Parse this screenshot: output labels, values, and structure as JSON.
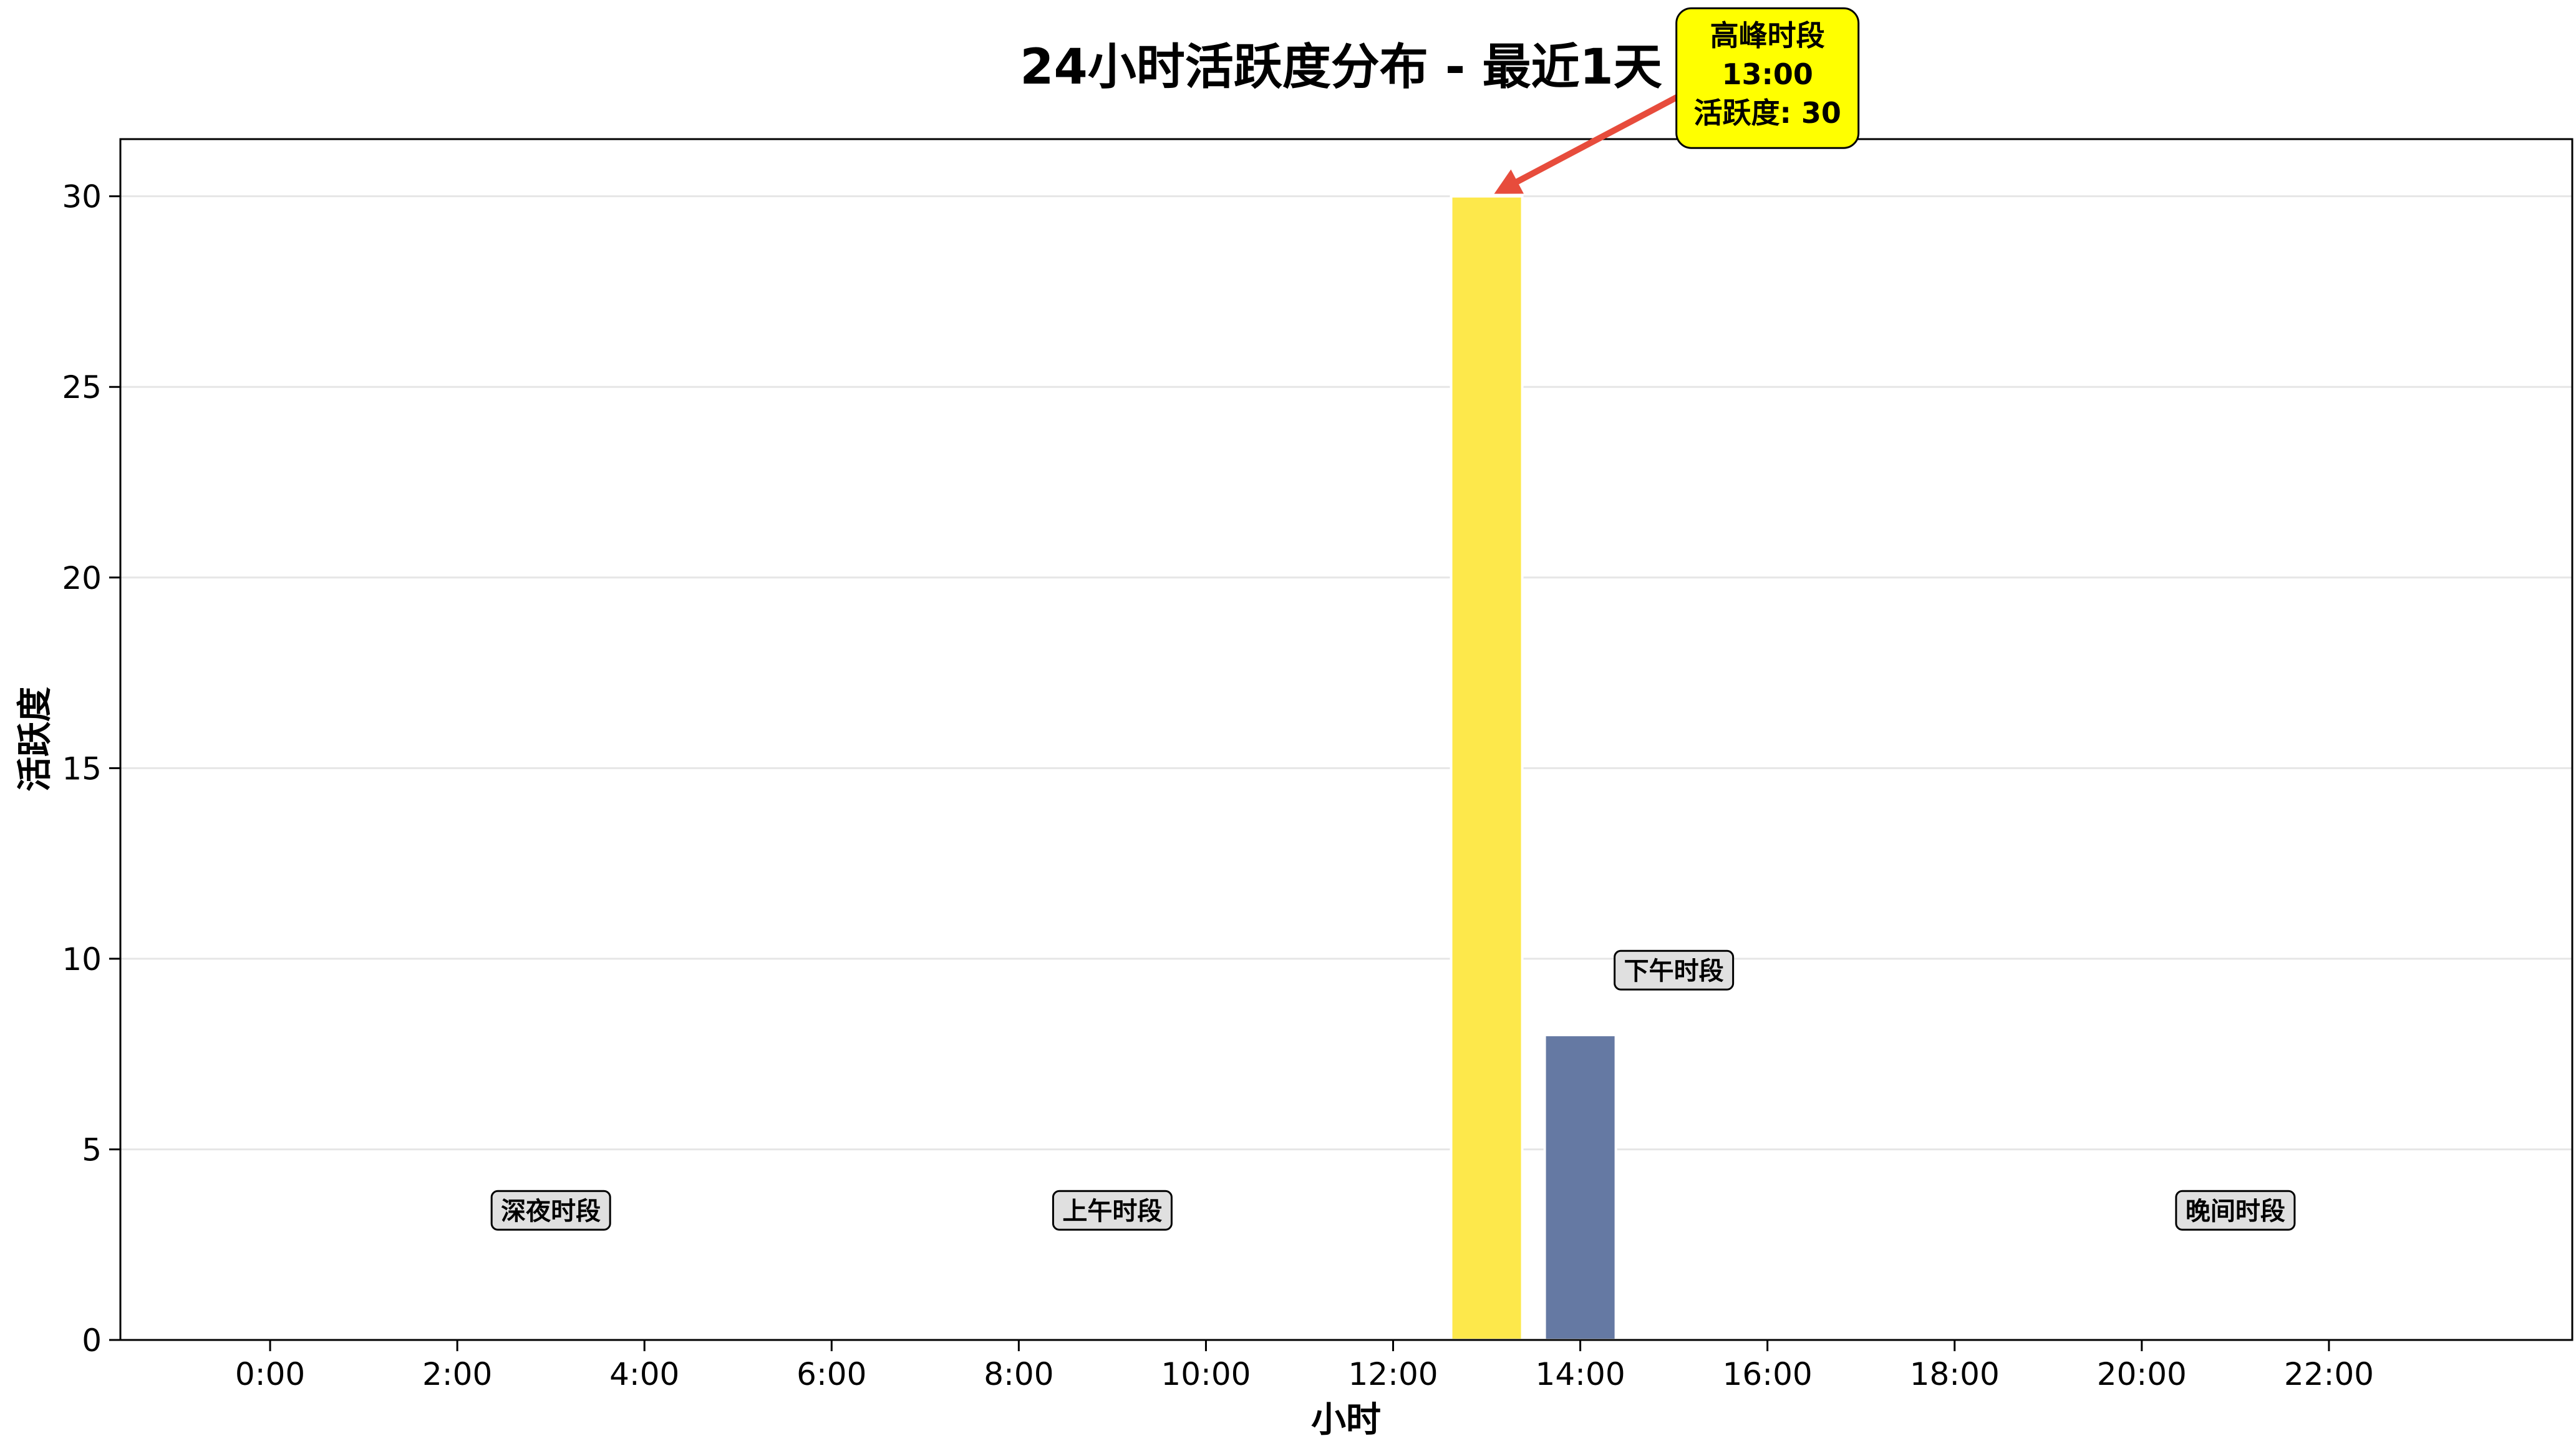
{
  "chart_data": {
    "type": "bar",
    "title": "24小时活跃度分布 - 最近1天",
    "xlabel": "小时",
    "ylabel": "活跃度",
    "x": [
      0,
      1,
      2,
      3,
      4,
      5,
      6,
      7,
      8,
      9,
      10,
      11,
      12,
      13,
      14,
      15,
      16,
      17,
      18,
      19,
      20,
      21,
      22,
      23
    ],
    "values": [
      0,
      0,
      0,
      0,
      0,
      0,
      0,
      0,
      0,
      0,
      0,
      0,
      0,
      30,
      8,
      0,
      0,
      0,
      0,
      0,
      0,
      0,
      0,
      0
    ],
    "bar_colors": {
      "13": "#fde84b",
      "14": "#6579a3"
    },
    "xticks": [
      0,
      2,
      4,
      6,
      8,
      10,
      12,
      14,
      16,
      18,
      20,
      22
    ],
    "xtick_labels": [
      "0:00",
      "2:00",
      "4:00",
      "6:00",
      "8:00",
      "10:00",
      "12:00",
      "14:00",
      "16:00",
      "18:00",
      "20:00",
      "22:00"
    ],
    "yticks": [
      0,
      5,
      10,
      15,
      20,
      25,
      30
    ],
    "ytick_labels": [
      "0",
      "5",
      "10",
      "15",
      "20",
      "25",
      "30"
    ],
    "xlim": [
      -1.6,
      24.6
    ],
    "ylim": [
      0,
      31.5
    ],
    "grid": "horizontal",
    "period_labels": [
      {
        "text": "深夜时段",
        "x": 3,
        "y": 3.4
      },
      {
        "text": "上午时段",
        "x": 9,
        "y": 3.4
      },
      {
        "text": "下午时段",
        "x": 15,
        "y": 9.7
      },
      {
        "text": "晚间时段",
        "x": 21,
        "y": 3.4
      }
    ],
    "peak_annotation": {
      "lines": [
        "高峰时段",
        "13:00",
        "活跃度: 30"
      ],
      "hour": 13,
      "value": 30,
      "text_x": 16,
      "text_y": 33.1
    },
    "colors": {
      "peak_box": "#ffff00",
      "peak_arrow": "#e74c3c",
      "period_box": "#e0e0e0",
      "grid": "#e6e6e6"
    }
  }
}
